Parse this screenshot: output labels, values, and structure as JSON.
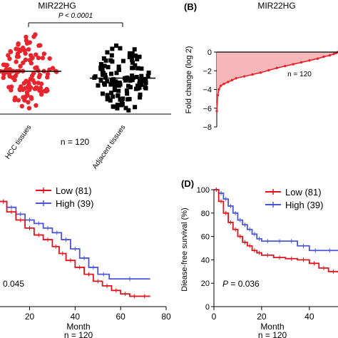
{
  "colors": {
    "hcc": "#e8242c",
    "adjacent": "#000000",
    "low": "#e0141c",
    "high": "#4a55d8",
    "area": "#f6b7bb"
  },
  "chart_data": [
    {
      "id": "A",
      "type": "scatter",
      "title": "MIR22HG",
      "pvalue_label": "P < 0.0001",
      "categories": [
        "HCC tissues",
        "Adjacent tissues"
      ],
      "n_label": "n = 120",
      "series": [
        {
          "name": "HCC tissues",
          "mean_level": 0.5,
          "spread": 0.6,
          "count": 120
        },
        {
          "name": "Adjacent tissues",
          "mean_level": 0.42,
          "spread": 0.55,
          "count": 120
        }
      ]
    },
    {
      "id": "B",
      "panel_label": "(B)",
      "type": "area",
      "title": "MIR22HG",
      "ylabel": "Fold change (log 2)",
      "yticks": [
        "0",
        "−2",
        "−4",
        "−6",
        "−8"
      ],
      "ylim": [
        -8,
        0
      ],
      "n_label": "n = 120",
      "x": [
        1,
        2,
        3,
        5,
        8,
        12,
        16,
        20,
        28,
        36,
        44,
        52,
        60,
        68,
        76,
        84,
        92,
        100,
        106,
        112,
        116,
        118,
        120
      ],
      "values": [
        -6.3,
        -4.6,
        -4.0,
        -3.6,
        -3.4,
        -3.2,
        -3.0,
        -2.8,
        -2.6,
        -2.4,
        -2.2,
        -1.95,
        -1.7,
        -1.5,
        -1.3,
        -1.1,
        -0.9,
        -0.7,
        -0.5,
        -0.35,
        -0.2,
        -0.1,
        0.0
      ]
    },
    {
      "id": "C",
      "type": "line",
      "xlabel": "Month",
      "n_label": "n = 120",
      "pvalue_text": "0.045",
      "xticks": [
        "20",
        "40",
        "60",
        "80"
      ],
      "xlim": [
        7,
        80
      ],
      "ylim": [
        0,
        100
      ],
      "legend": [
        "Low (81)",
        "High (39)"
      ],
      "series": [
        {
          "name": "Low (81)",
          "x": [
            7,
            10,
            14,
            18,
            22,
            26,
            30,
            33,
            36,
            40,
            44,
            48,
            52,
            56,
            60,
            64,
            68,
            73
          ],
          "y": [
            91,
            82,
            75,
            68,
            62,
            58,
            52,
            46,
            40,
            34,
            28,
            22,
            18,
            14,
            11,
            9,
            9,
            9
          ]
        },
        {
          "name": "High (39)",
          "x": [
            7,
            10,
            14,
            18,
            22,
            26,
            30,
            34,
            38,
            42,
            46,
            50,
            55,
            73
          ],
          "y": [
            91,
            86,
            80,
            75,
            72,
            68,
            64,
            58,
            50,
            42,
            34,
            28,
            24,
            24
          ]
        }
      ]
    },
    {
      "id": "D",
      "panel_label": "(D)",
      "type": "line",
      "ylabel": "Diease-free survival (%)",
      "xlabel": "Month",
      "n_label": "n = 120",
      "p_symbol": "P",
      "p_value": " = 0.036",
      "yticks": [
        "100",
        "80",
        "60",
        "40",
        "20",
        "0"
      ],
      "xticks": [
        "0",
        "20",
        "40"
      ],
      "xlim": [
        0,
        52
      ],
      "ylim": [
        0,
        100
      ],
      "legend": [
        "Low (81)",
        "High (39)"
      ],
      "series": [
        {
          "name": "Low (81)",
          "x": [
            0,
            2,
            4,
            6,
            8,
            10,
            12,
            14,
            16,
            18,
            20,
            25,
            30,
            35,
            40,
            44,
            48,
            52
          ],
          "y": [
            100,
            90,
            80,
            72,
            66,
            60,
            55,
            52,
            48,
            46,
            44,
            42,
            41,
            40,
            37,
            33,
            30,
            29
          ]
        },
        {
          "name": "High (39)",
          "x": [
            0,
            2,
            4,
            6,
            8,
            10,
            12,
            14,
            16,
            18,
            20,
            25,
            30,
            35,
            40,
            45,
            52
          ],
          "y": [
            100,
            97,
            92,
            86,
            80,
            74,
            70,
            66,
            62,
            58,
            56,
            56,
            56,
            52,
            48,
            48,
            48
          ]
        }
      ]
    }
  ]
}
